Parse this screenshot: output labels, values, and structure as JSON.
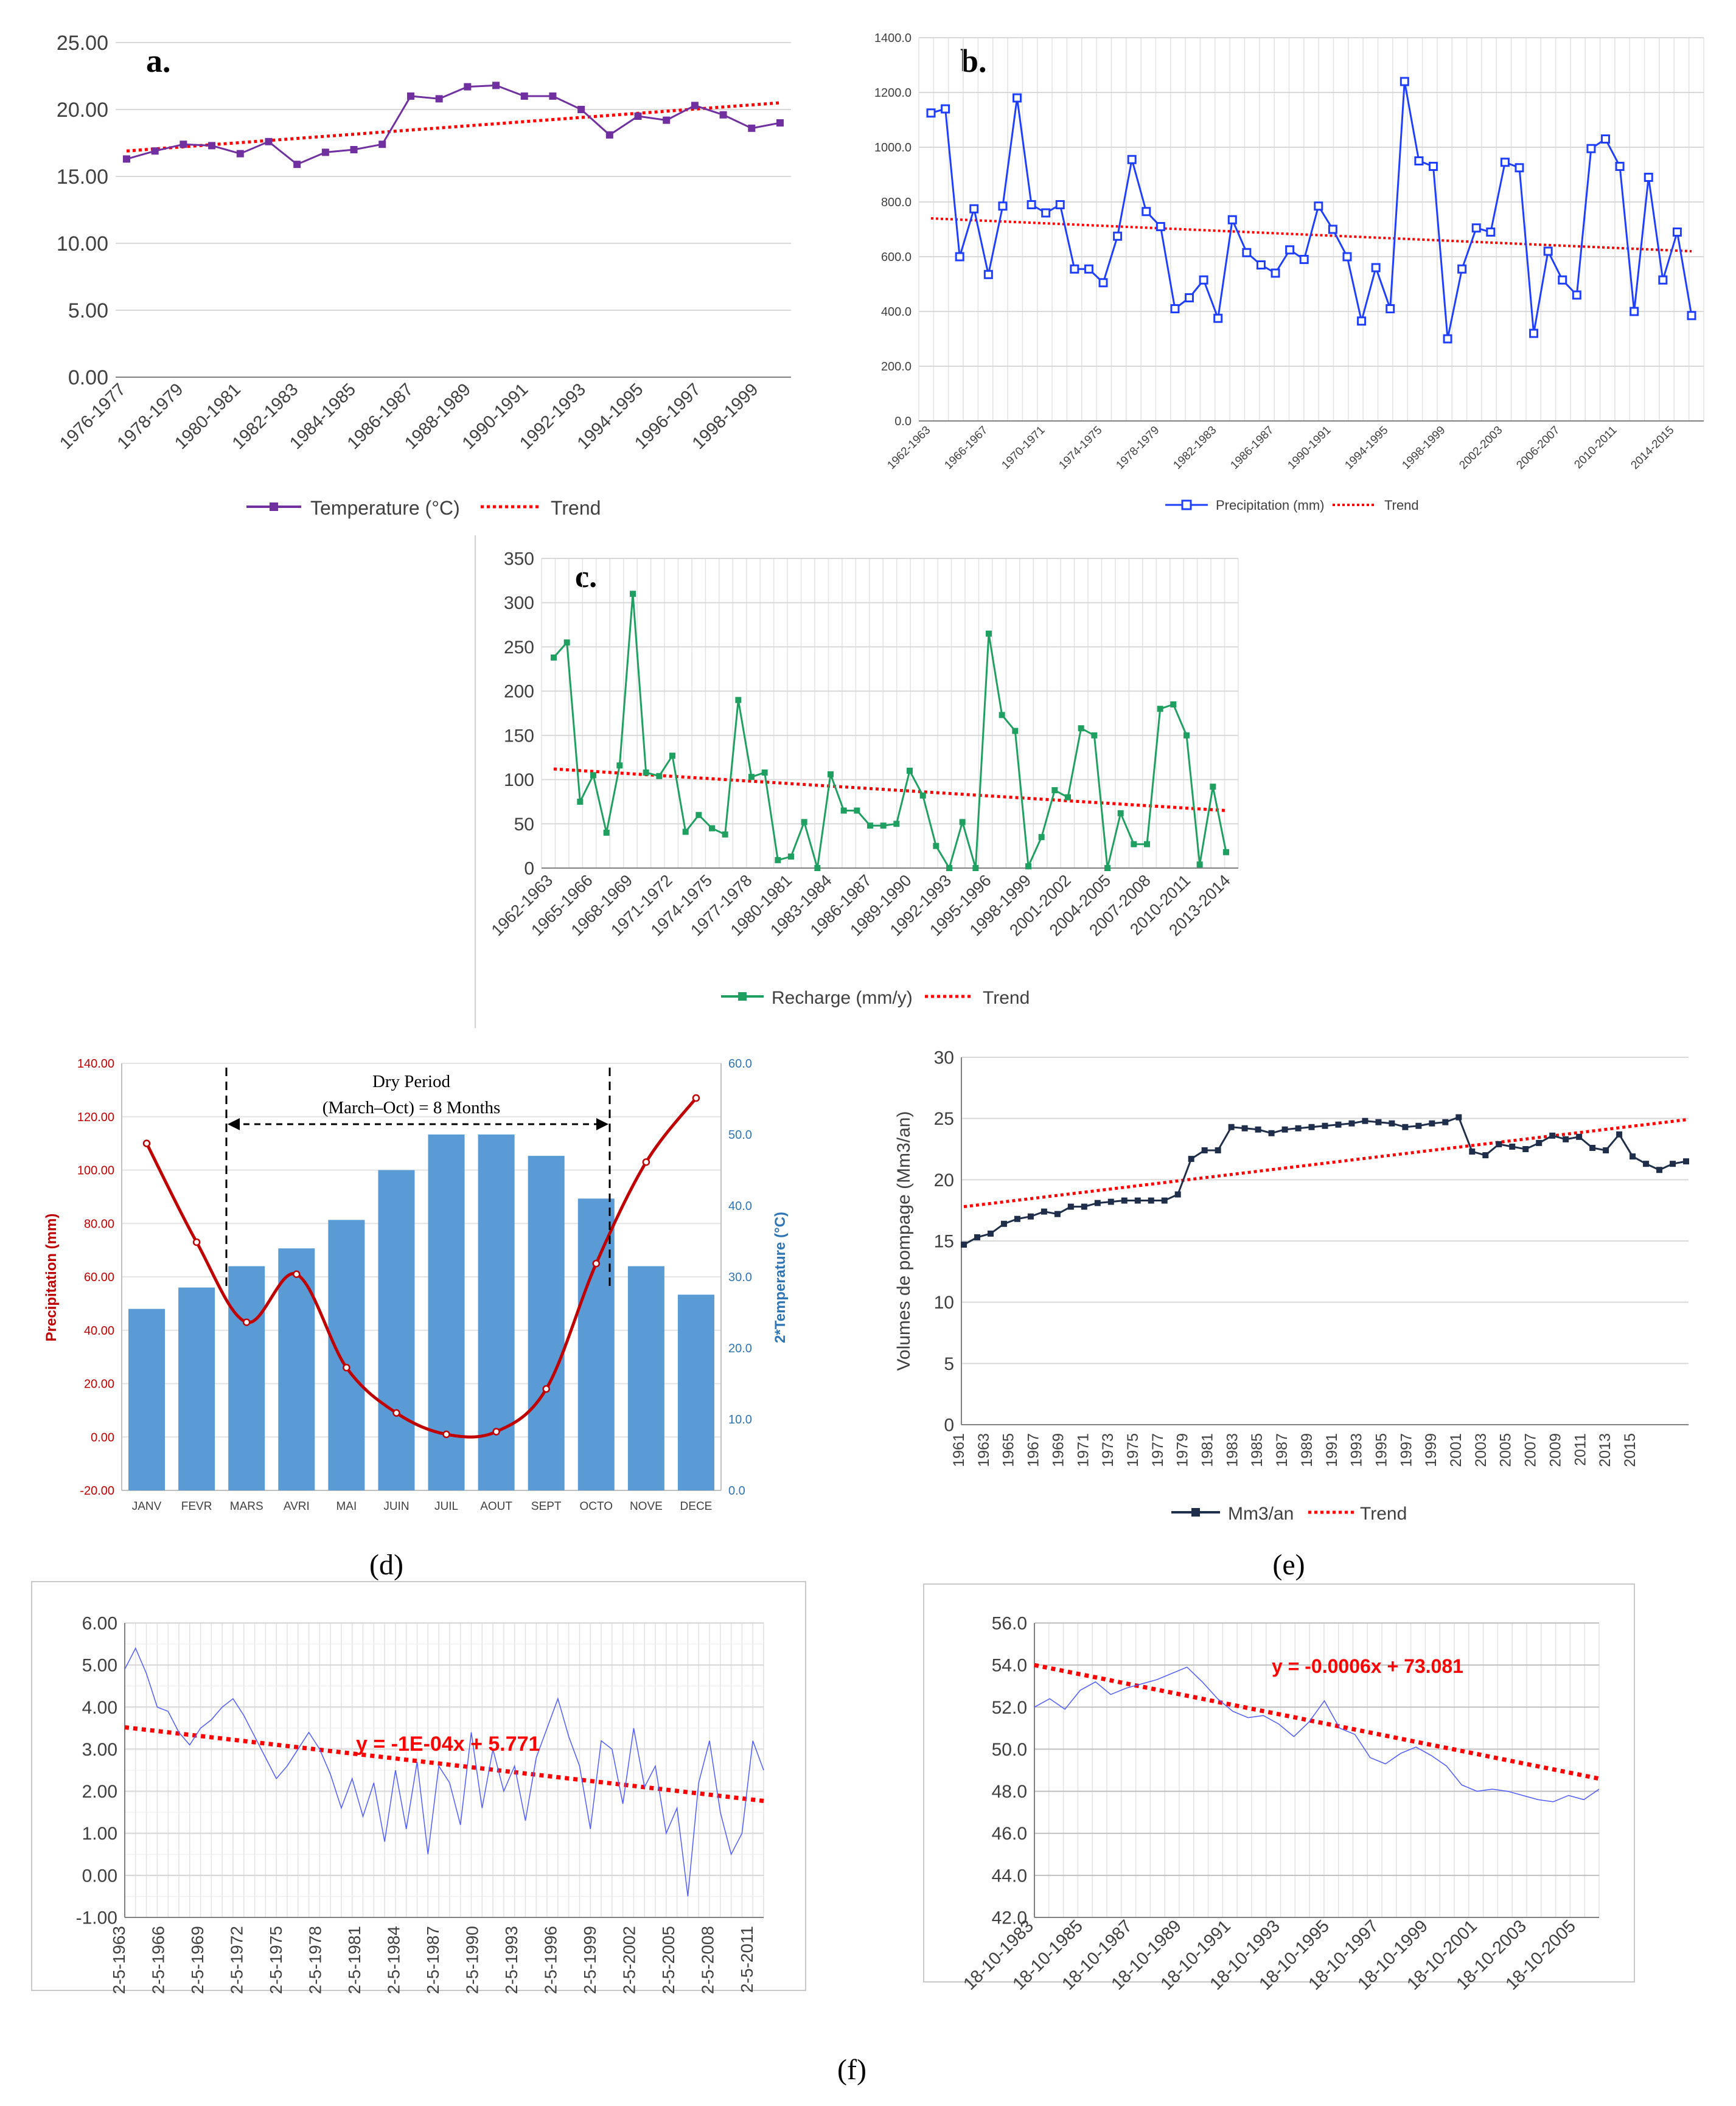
{
  "chart_data": [
    {
      "id": "a",
      "panel_label": "a.",
      "type": "line",
      "ylim": [
        0,
        25
      ],
      "y_ticks": [
        "0.00",
        "5.00",
        "10.00",
        "15.00",
        "20.00",
        "25.00"
      ],
      "x_tick_labels": [
        "1976-1977",
        "1978-1979",
        "1980-1981",
        "1982-1983",
        "1984-1985",
        "1986-1987",
        "1988-1989",
        "1990-1991",
        "1992-1993",
        "1994-1995",
        "1996-1997",
        "1998-1999"
      ],
      "series": [
        {
          "name": "Temperature (°C)",
          "color": "#7030A0",
          "values": [
            16.3,
            16.9,
            17.4,
            17.3,
            16.7,
            17.6,
            15.9,
            16.8,
            17.0,
            17.4,
            21.0,
            20.8,
            21.7,
            21.8,
            21.0,
            21.0,
            20.0,
            18.1,
            19.5,
            19.2,
            20.3,
            19.6,
            18.6,
            19.0
          ]
        }
      ],
      "trend": {
        "name": "Trend",
        "from": 16.9,
        "to": 20.5,
        "color": "#FF0000"
      }
    },
    {
      "id": "b",
      "panel_label": "b.",
      "type": "line",
      "ylim": [
        0,
        1400
      ],
      "y_ticks": [
        "0.0",
        "200.0",
        "400.0",
        "600.0",
        "800.0",
        "1000.0",
        "1200.0",
        "1400.0"
      ],
      "x_tick_labels": [
        "1962-1963",
        "1966-1967",
        "1970-1971",
        "1974-1975",
        "1978-1979",
        "1982-1983",
        "1986-1987",
        "1990-1991",
        "1994-1995",
        "1998-1999",
        "2002-2003",
        "2006-2007",
        "2010-2011",
        "2014-2015"
      ],
      "series": [
        {
          "name": "Precipitation (mm)",
          "color": "#1F3FFF",
          "values": [
            1125,
            1140,
            600,
            775,
            535,
            785,
            1180,
            790,
            760,
            790,
            555,
            555,
            505,
            675,
            955,
            765,
            710,
            410,
            450,
            515,
            375,
            735,
            615,
            570,
            540,
            625,
            590,
            785,
            700,
            600,
            365,
            560,
            410,
            1240,
            950,
            930,
            300,
            555,
            705,
            690,
            945,
            925,
            320,
            620,
            515,
            460,
            995,
            1030,
            930,
            400,
            890,
            515,
            690,
            385
          ]
        }
      ],
      "trend": {
        "name": "Trend",
        "from": 740,
        "to": 620,
        "color": "#FF0000"
      }
    },
    {
      "id": "c",
      "panel_label": "c.",
      "type": "line",
      "ylim": [
        0,
        350
      ],
      "y_ticks": [
        "0",
        "50",
        "100",
        "150",
        "200",
        "250",
        "300",
        "350"
      ],
      "x_tick_labels": [
        "1962-1963",
        "1965-1966",
        "1968-1969",
        "1971-1972",
        "1974-1975",
        "1977-1978",
        "1980-1981",
        "1983-1984",
        "1986-1987",
        "1989-1990",
        "1992-1993",
        "1995-1996",
        "1998-1999",
        "2001-2002",
        "2004-2005",
        "2007-2008",
        "2010-2011",
        "2013-2014"
      ],
      "series": [
        {
          "name": "Recharge (mm/y)",
          "color": "#20A060",
          "values": [
            238,
            255,
            75,
            105,
            40,
            116,
            310,
            108,
            104,
            127,
            41,
            60,
            45,
            38,
            190,
            103,
            108,
            9,
            13,
            52,
            0,
            106,
            65,
            65,
            48,
            48,
            50,
            110,
            82,
            25,
            0,
            52,
            0,
            265,
            173,
            155,
            2,
            35,
            88,
            80,
            158,
            150,
            0,
            62,
            27,
            27,
            180,
            185,
            150,
            4,
            92,
            18
          ]
        }
      ],
      "trend": {
        "name": "Trend",
        "from": 112,
        "to": 65,
        "color": "#FF0000"
      }
    },
    {
      "id": "d",
      "caption": "(d)",
      "type": "bar+line",
      "categories": [
        "JANV",
        "FEVR",
        "MARS",
        "AVRI",
        "MAI",
        "JUIN",
        "JUIL",
        "AOUT",
        "SEPT",
        "OCTO",
        "NOVE",
        "DECE"
      ],
      "ylabel_left": "Precipitation (mm)",
      "ylabel_right": "2*Temperature (°C)",
      "ylim_left": [
        -20,
        140
      ],
      "ylim_right": [
        0,
        60
      ],
      "y_ticks_left": [
        "-20.00",
        "0.00",
        "20.00",
        "40.00",
        "60.00",
        "80.00",
        "100.00",
        "120.00",
        "140.00"
      ],
      "y_ticks_right": [
        "0.0",
        "10.0",
        "20.0",
        "30.0",
        "40.0",
        "50.0",
        "60.0"
      ],
      "bars": {
        "name": "2*Temperature (°C)",
        "color": "#5B9BD5",
        "values": [
          25.5,
          28.5,
          31.5,
          34,
          38,
          45,
          50,
          50,
          47,
          41,
          31.5,
          27.5
        ]
      },
      "line": {
        "name": "Precipitation (mm)",
        "color": "#C00000",
        "values": [
          110,
          73,
          43,
          61,
          26,
          9,
          1,
          2,
          18,
          65,
          103,
          127
        ]
      },
      "annotation_title": "Dry Period",
      "annotation_sub": "(March–Oct) = 8 Months"
    },
    {
      "id": "e",
      "caption": "(e)",
      "type": "line",
      "ylabel": "Volumes de pompage (Mm3/an)",
      "ylim": [
        0,
        30
      ],
      "y_ticks": [
        "0",
        "5",
        "10",
        "15",
        "20",
        "25",
        "30"
      ],
      "x_start": 1961,
      "x_end": 2015,
      "x_tick_labels": [
        "1961",
        "1963",
        "1965",
        "1967",
        "1969",
        "1971",
        "1973",
        "1975",
        "1977",
        "1979",
        "1981",
        "1983",
        "1985",
        "1987",
        "1989",
        "1991",
        "1993",
        "1995",
        "1997",
        "1999",
        "2001",
        "2003",
        "2005",
        "2007",
        "2009",
        "2011",
        "2013",
        "2015"
      ],
      "series": [
        {
          "name": "Mm3/an",
          "color": "#1F2E4A",
          "values": [
            14.7,
            15.3,
            15.6,
            16.4,
            16.8,
            17.0,
            17.4,
            17.2,
            17.8,
            17.8,
            18.1,
            18.2,
            18.3,
            18.3,
            18.3,
            18.3,
            18.8,
            21.7,
            22.4,
            22.4,
            24.3,
            24.2,
            24.1,
            23.8,
            24.1,
            24.2,
            24.3,
            24.4,
            24.5,
            24.6,
            24.8,
            24.7,
            24.6,
            24.3,
            24.4,
            24.6,
            24.7,
            25.1,
            22.3,
            22.0,
            22.9,
            22.7,
            22.5,
            23.0,
            23.6,
            23.3,
            23.5,
            22.6,
            22.4,
            23.7,
            21.9,
            21.3,
            20.8,
            21.3,
            21.5
          ]
        }
      ],
      "trend": {
        "name": "Trend",
        "from": 17.8,
        "to": 24.9,
        "color": "#FF0000"
      }
    },
    {
      "id": "f-left",
      "type": "line",
      "ylim": [
        -1,
        6
      ],
      "y_ticks": [
        "-1.00",
        "0.00",
        "1.00",
        "2.00",
        "3.00",
        "4.00",
        "5.00",
        "6.00"
      ],
      "x_tick_labels": [
        "2-5-1963",
        "2-5-1966",
        "2-5-1969",
        "2-5-1972",
        "2-5-1975",
        "2-5-1978",
        "2-5-1981",
        "2-5-1984",
        "2-5-1987",
        "2-5-1990",
        "2-5-1993",
        "2-5-1996",
        "2-5-1999",
        "2-5-2002",
        "2-5-2005",
        "2-5-2008",
        "2-5-2011"
      ],
      "series": [
        {
          "name": "",
          "color": "#4D5BFF",
          "values": [
            4.9,
            5.4,
            4.8,
            4.0,
            3.9,
            3.4,
            3.1,
            3.5,
            3.7,
            4.0,
            4.2,
            3.8,
            3.3,
            2.8,
            2.3,
            2.6,
            3.0,
            3.4,
            3.0,
            2.4,
            1.6,
            2.3,
            1.4,
            2.2,
            0.8,
            2.5,
            1.1,
            2.7,
            0.5,
            2.6,
            2.2,
            1.2,
            3.4,
            1.6,
            3.0,
            2.0,
            2.6,
            1.3,
            2.8,
            3.5,
            4.2,
            3.3,
            2.6,
            1.1,
            3.2,
            3.0,
            1.7,
            3.5,
            2.1,
            2.6,
            1.0,
            1.6,
            -0.5,
            2.2,
            3.2,
            1.5,
            0.5,
            1.0,
            3.2,
            2.5
          ]
        }
      ],
      "trend": {
        "from": 3.52,
        "to": 1.77,
        "color": "#FF0000"
      },
      "equation": "y = -1E-04x + 5.771"
    },
    {
      "id": "f-right",
      "type": "line",
      "ylim": [
        42,
        56
      ],
      "y_ticks": [
        "42.0",
        "44.0",
        "46.0",
        "48.0",
        "50.0",
        "52.0",
        "54.0",
        "56.0"
      ],
      "x_tick_labels": [
        "18-10-1983",
        "18-10-1985",
        "18-10-1987",
        "18-10-1989",
        "18-10-1991",
        "18-10-1993",
        "18-10-1995",
        "18-10-1997",
        "18-10-1999",
        "18-10-2001",
        "18-10-2003",
        "18-10-2005"
      ],
      "series": [
        {
          "name": "",
          "color": "#4D5BFF",
          "values": [
            52.0,
            52.4,
            51.9,
            52.8,
            53.2,
            52.6,
            52.9,
            53.1,
            53.3,
            53.6,
            53.9,
            53.2,
            52.4,
            51.8,
            51.5,
            51.6,
            51.2,
            50.6,
            51.3,
            52.3,
            51.0,
            50.7,
            49.6,
            49.3,
            49.8,
            50.1,
            49.7,
            49.2,
            48.3,
            48.0,
            48.1,
            48.0,
            47.8,
            47.6,
            47.5,
            47.8,
            47.6,
            48.1
          ]
        }
      ],
      "trend": {
        "from": 54.0,
        "to": 48.6,
        "color": "#FF0000"
      },
      "equation": "y = -0.0006x + 73.081"
    }
  ],
  "captions": {
    "f": "(f)"
  }
}
